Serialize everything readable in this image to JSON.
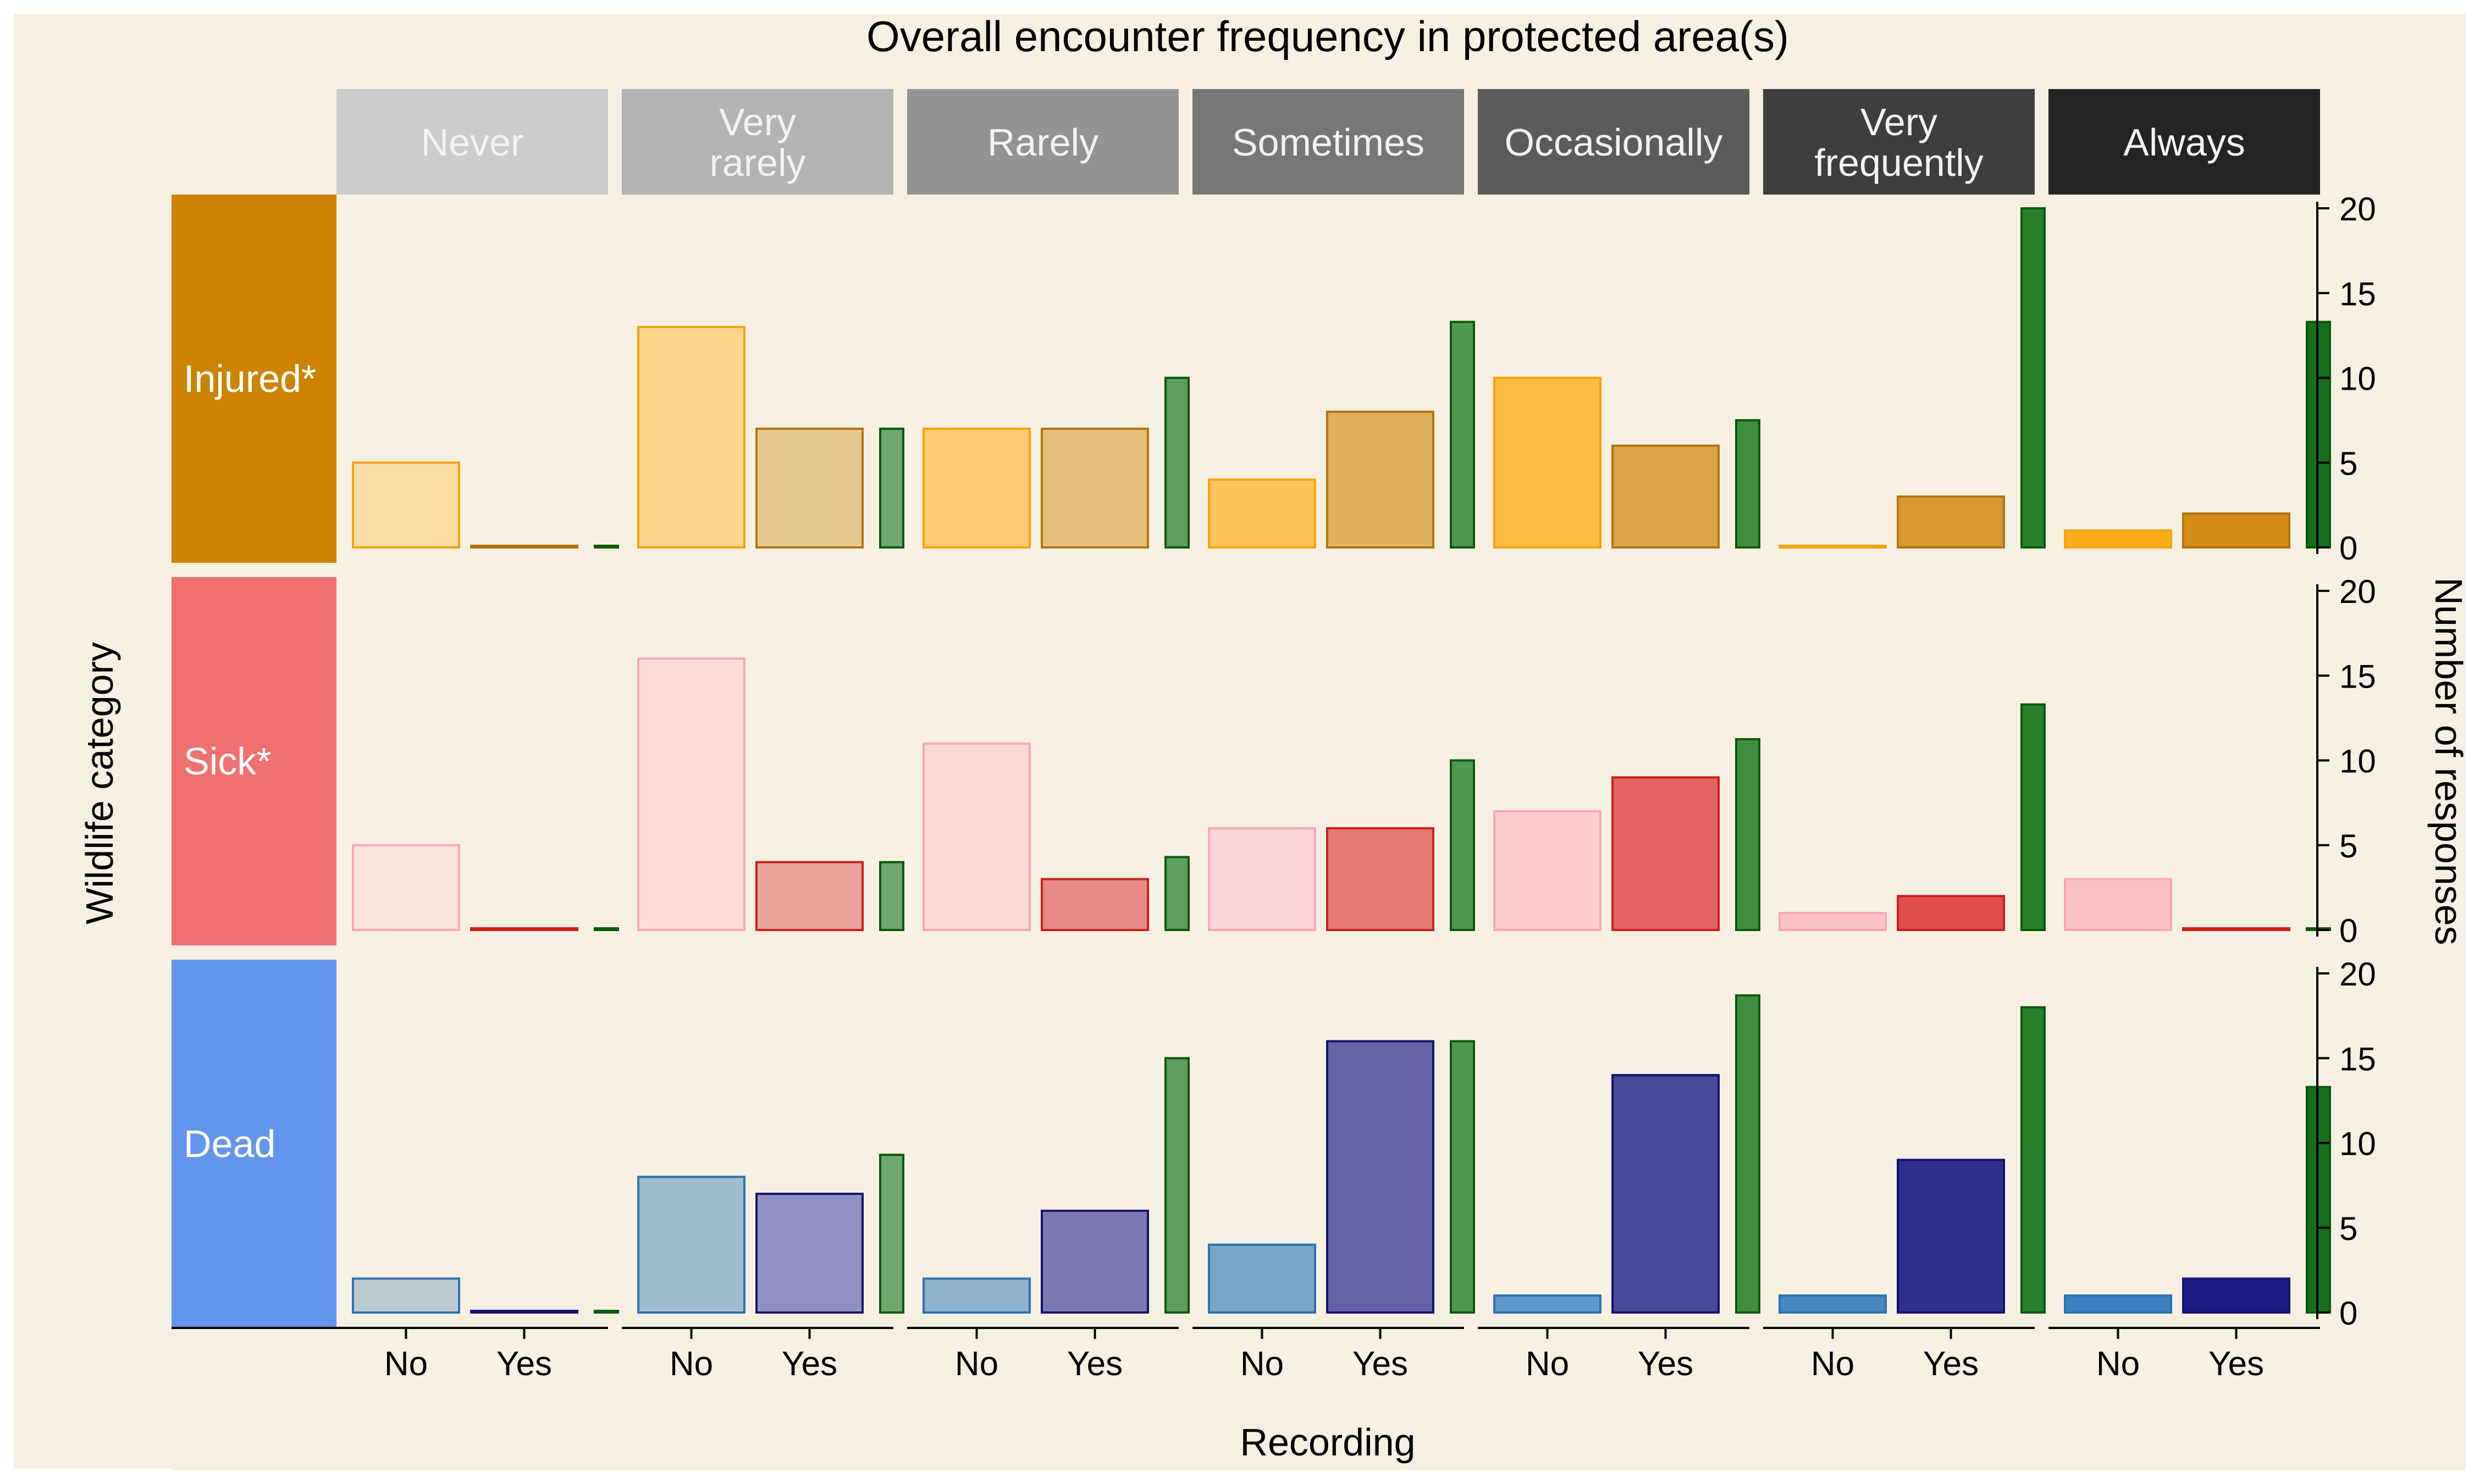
{
  "chart_data": {
    "type": "bar",
    "title": "Overall encounter frequency in protected area(s)",
    "xlabel": "Recording",
    "ylabel": "Number of responses",
    "row_axis_label": "Wildlife category",
    "categories": [
      "No",
      "Yes"
    ],
    "frequencies": [
      "Never",
      "Very\nrarely",
      "Rarely",
      "Sometimes",
      "Occasionally",
      "Very\nfrequently",
      "Always"
    ],
    "frequency_colors": [
      "#cccccc",
      "#b3b3b3",
      "#939393",
      "#777777",
      "#5b5b5b",
      "#3e3e3e",
      "#242424"
    ],
    "ylim": [
      0,
      20
    ],
    "yticks": [
      0,
      5,
      10,
      15,
      20
    ],
    "rows": [
      {
        "name": "Injured*",
        "strip_color": "#cc8400",
        "no_fill": [
          "#fadca4",
          "#fbd58c",
          "#fdcc74",
          "#fdc25b",
          "#fdbc43",
          "#fdb42d",
          "#fbac1a"
        ],
        "no_stroke": "#f4a30c",
        "yes_fill": [
          "#c98a18",
          "#e7c890",
          "#e4bd78",
          "#e0b25f",
          "#dba446",
          "#d89730",
          "#d48c17"
        ],
        "yes_stroke": "#b07510",
        "no": [
          5,
          13,
          7,
          4,
          10,
          0,
          1
        ],
        "yes": [
          0,
          7,
          7,
          8,
          6,
          3,
          2
        ],
        "ratio": [
          0,
          7,
          10,
          13.3,
          7.5,
          20,
          13.3
        ]
      },
      {
        "name": "Sick*",
        "strip_color": "#f07070",
        "no_fill": [
          "#fbe4e0",
          "#fcdddb",
          "#fdd8d9",
          "#fdd4d7",
          "#fdccd1",
          "#fcc2c8",
          "#fbc0c6"
        ],
        "no_stroke": "#f9a8b2",
        "yes_fill": [
          "#d43c3c",
          "#eaa49c",
          "#e88a86",
          "#e57a72",
          "#e26362",
          "#df4e4c",
          "#d43c3c"
        ],
        "yes_stroke": "#c8201e",
        "no": [
          5,
          16,
          11,
          6,
          7,
          1,
          3
        ],
        "yes": [
          0,
          4,
          3,
          6,
          9,
          2,
          0
        ],
        "ratio": [
          0,
          4,
          4.3,
          10,
          11.25,
          13.3,
          0
        ]
      },
      {
        "name": "Dead",
        "strip_color": "#6495ed",
        "no_fill": [
          "#bccad0",
          "#a0bdd0",
          "#8eb2cc",
          "#75a6c8",
          "#5e98c8",
          "#4888c0",
          "#3a80c0"
        ],
        "no_stroke": "#2e72b0",
        "yes_fill": [
          "#1e1e80",
          "#9290c2",
          "#7c78b2",
          "#6662a8",
          "#4a4899",
          "#2e2e8c",
          "#1c1c84"
        ],
        "yes_stroke": "#141470",
        "no": [
          2,
          8,
          2,
          4,
          1,
          1,
          1
        ],
        "yes": [
          0,
          7,
          6,
          16,
          14,
          9,
          2
        ],
        "ratio": [
          0,
          9.3,
          15,
          16,
          18.7,
          18,
          13.3
        ]
      }
    ],
    "ratio_colors": [
      "#2e8b2e",
      "#6fa86f",
      "#5e9e5e",
      "#4f984f",
      "#3f8f3f",
      "#2a7f2a",
      "#1a6e1a"
    ],
    "ratio_stroke": "#0a5a0a"
  }
}
